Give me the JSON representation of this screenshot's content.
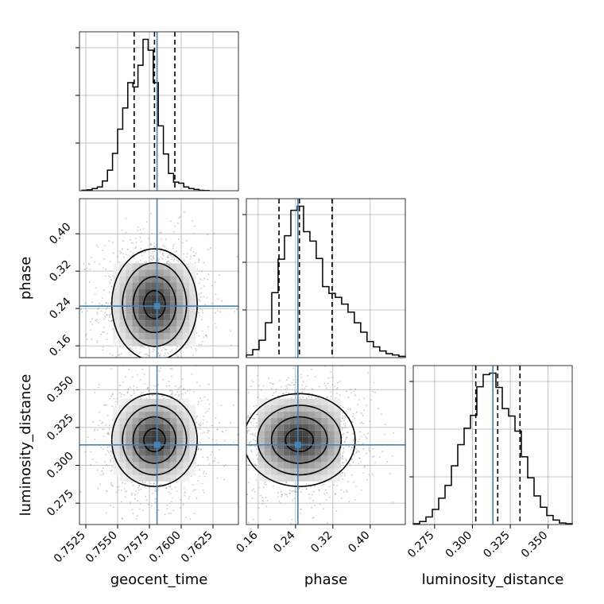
{
  "chart_data": {
    "type": "corner",
    "parameters": [
      {
        "name": "geocent_time",
        "range": [
          0.752,
          0.7645
        ],
        "ticks": [
          0.7525,
          0.755,
          0.7575,
          0.76,
          0.7625
        ],
        "tick_labels": [
          "0.7525",
          "0.7550",
          "0.7575",
          "0.7600",
          "0.7625"
        ],
        "truth": 0.7581,
        "quantiles": [
          0.7563,
          0.7579,
          0.7595
        ],
        "hist_bins": [
          0.7522,
          0.7526,
          0.753,
          0.7534,
          0.7538,
          0.7542,
          0.7546,
          0.755,
          0.7554,
          0.7558,
          0.7562,
          0.7566,
          0.757,
          0.7574,
          0.7578,
          0.7582,
          0.7586,
          0.759,
          0.7594,
          0.7598,
          0.7602,
          0.7606,
          0.761,
          0.7614,
          0.7618,
          0.7622
        ],
        "hist_counts": [
          5,
          8,
          20,
          35,
          90,
          190,
          345,
          570,
          765,
          1000,
          960,
          1160,
          1400,
          1300,
          1000,
          600,
          340,
          160,
          80,
          70,
          35,
          20,
          12,
          4,
          2
        ]
      },
      {
        "name": "phase",
        "range": [
          0.1347,
          0.4752
        ],
        "ticks": [
          0.16,
          0.24,
          0.32,
          0.4
        ],
        "tick_labels": [
          "0.16",
          "0.24",
          "0.32",
          "0.40"
        ],
        "truth": 0.2451,
        "quantiles": [
          0.2046,
          0.2483,
          0.3184
        ],
        "hist_bins": [
          0.1347,
          0.1483,
          0.1619,
          0.1755,
          0.1891,
          0.2027,
          0.2164,
          0.23,
          0.2436,
          0.2572,
          0.2708,
          0.2844,
          0.298,
          0.3116,
          0.3252,
          0.3388,
          0.3524,
          0.366,
          0.3796,
          0.3932,
          0.4069,
          0.4205,
          0.4341,
          0.4477,
          0.4613,
          0.4752
        ],
        "hist_counts": [
          40,
          120,
          260,
          520,
          970,
          1470,
          1820,
          2200,
          2260,
          1880,
          1740,
          1480,
          1060,
          960,
          900,
          800,
          680,
          520,
          380,
          240,
          160,
          100,
          60,
          40,
          20
        ]
      },
      {
        "name": "luminosity_distance",
        "range": [
          0.2609,
          0.3659
        ],
        "ticks": [
          0.275,
          0.3,
          0.325,
          0.35
        ],
        "tick_labels": [
          "0.275",
          "0.300",
          "0.325",
          "0.350"
        ],
        "truth": 0.3135,
        "quantiles": [
          0.3022,
          0.3167,
          0.3314
        ],
        "hist_bins": [
          0.2609,
          0.2651,
          0.2693,
          0.2735,
          0.2777,
          0.2819,
          0.2861,
          0.2903,
          0.2945,
          0.2987,
          0.3029,
          0.3071,
          0.3113,
          0.3155,
          0.3197,
          0.3239,
          0.3281,
          0.3323,
          0.3365,
          0.3407,
          0.3449,
          0.3491,
          0.3533,
          0.3575,
          0.3617,
          0.3659
        ],
        "hist_counts": [
          10,
          40,
          100,
          200,
          350,
          520,
          780,
          1060,
          1280,
          1450,
          1830,
          1990,
          2010,
          1820,
          1540,
          1440,
          1240,
          900,
          620,
          380,
          230,
          120,
          60,
          20,
          10
        ]
      }
    ],
    "contour_sigma_levels": [
      0.5,
      1.0,
      1.5,
      2.0
    ],
    "grid": true
  }
}
